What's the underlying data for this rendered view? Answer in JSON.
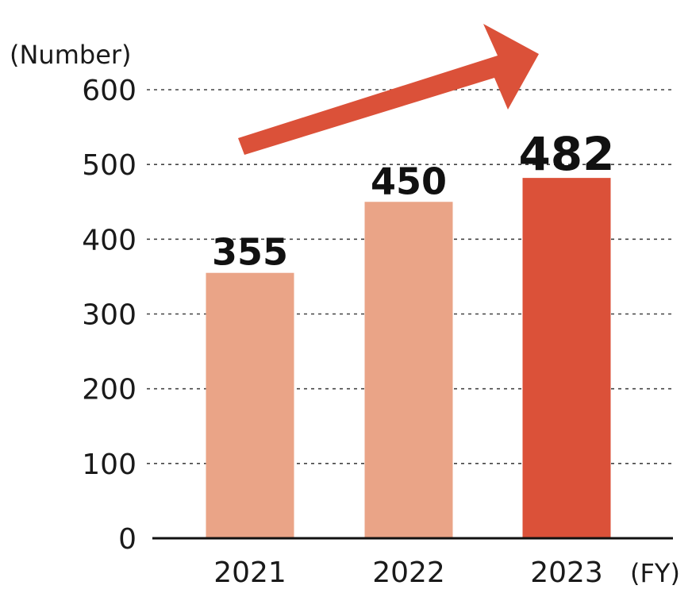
{
  "chart_data": {
    "type": "bar",
    "title": "",
    "ylabel": "(Number)",
    "xlabel": "(FY)",
    "categories": [
      "2021",
      "2022",
      "2023"
    ],
    "values": [
      355,
      450,
      482
    ],
    "data_labels": [
      "355",
      "450",
      "482"
    ],
    "ylim": [
      0,
      600
    ],
    "yticks": [
      0,
      100,
      200,
      300,
      400,
      500,
      600
    ],
    "ytick_labels": [
      "0",
      "100",
      "200",
      "300",
      "400",
      "500",
      "600"
    ],
    "grid": "horizontal-dotted",
    "legend": "none",
    "bar_colors": [
      "#eaa487",
      "#eaa487",
      "#db5139"
    ],
    "highlighted_category": "2023",
    "annotation": "upward-trend-arrow",
    "arrow_color": "#db5139"
  }
}
